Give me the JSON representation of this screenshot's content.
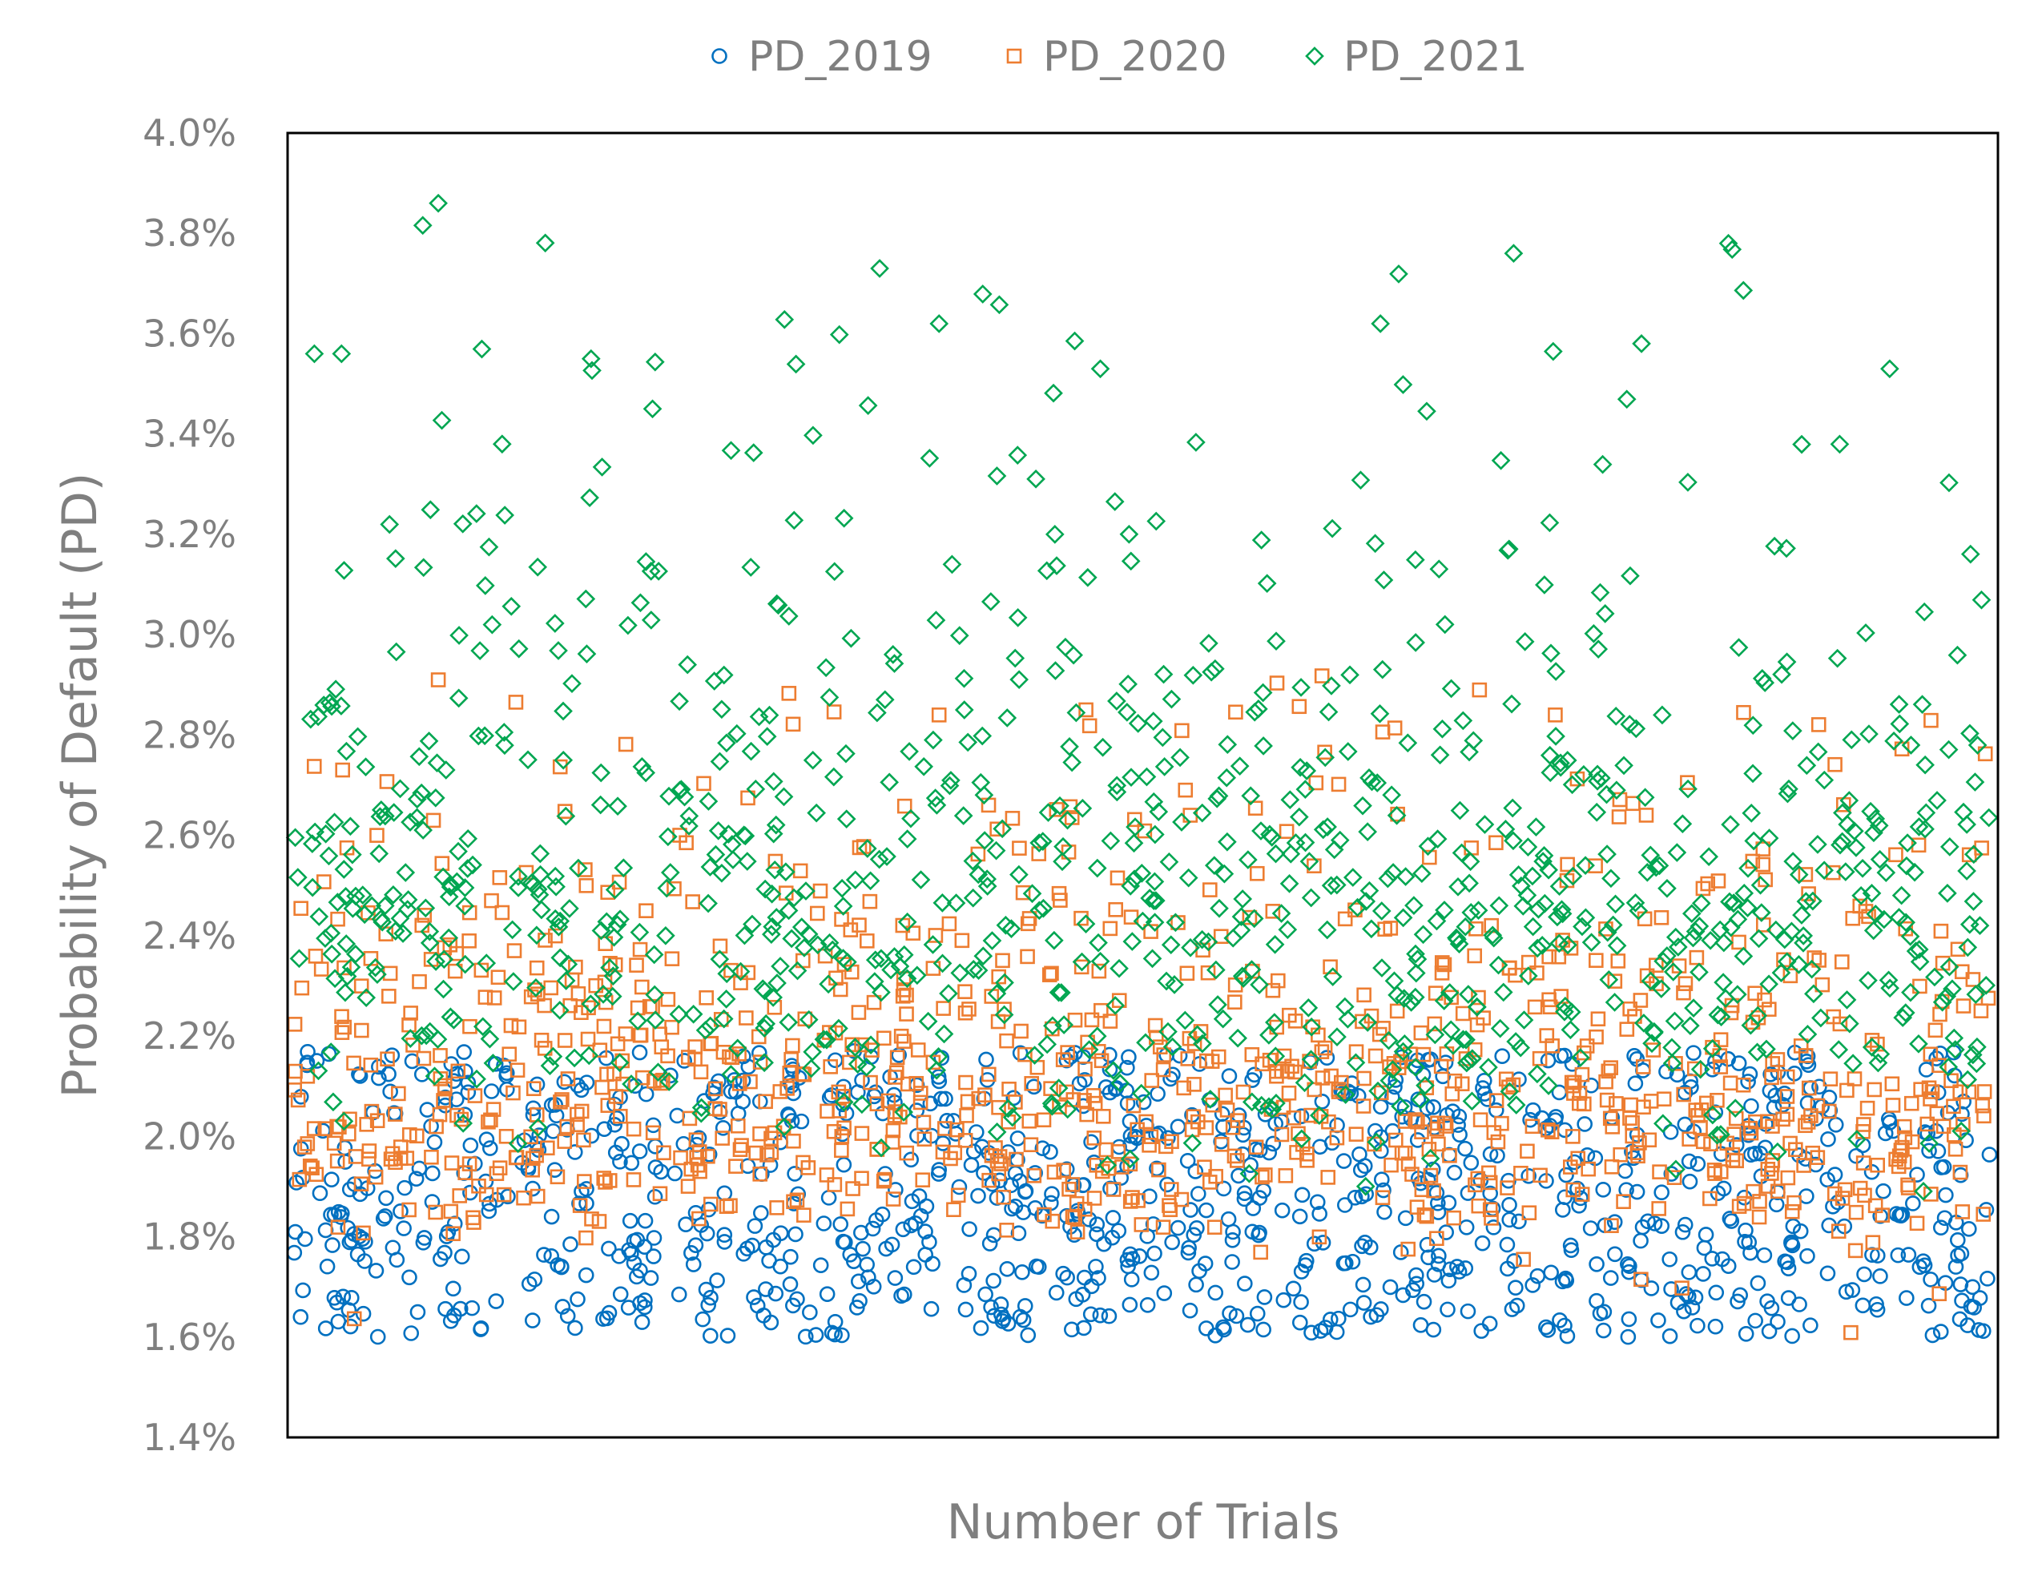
{
  "chart_data": {
    "type": "scatter",
    "title": "",
    "xlabel": "Number of Trials",
    "ylabel": "Probability of Default (PD)",
    "x_range": [
      0,
      1000
    ],
    "ylim": [
      0.014,
      0.04
    ],
    "yticks": [
      0.014,
      0.016,
      0.018,
      0.02,
      0.022,
      0.024,
      0.026,
      0.028,
      0.03,
      0.032,
      0.034,
      0.036,
      0.038,
      0.04
    ],
    "ytick_labels": [
      "1.4%",
      "1.6%",
      "1.8%",
      "2.0%",
      "2.2%",
      "2.4%",
      "2.6%",
      "2.8%",
      "3.0%",
      "3.2%",
      "3.4%",
      "3.6%",
      "3.8%",
      "4.0%"
    ],
    "grid": false,
    "legend_position": "top-center",
    "series": [
      {
        "name": "PD_2019",
        "marker": "circle",
        "color": "#0070c0",
        "count": 1000,
        "value_range": [
          0.016,
          0.0217
        ],
        "typical_range": [
          0.0165,
          0.021
        ]
      },
      {
        "name": "PD_2020",
        "marker": "square",
        "color": "#ed7d31",
        "count": 1000,
        "value_range": [
          0.016,
          0.0292
        ],
        "typical_range": [
          0.0175,
          0.026
        ]
      },
      {
        "name": "PD_2021",
        "marker": "diamond",
        "color": "#00a651",
        "count": 1000,
        "value_range": [
          0.0163,
          0.0386
        ],
        "typical_range": [
          0.019,
          0.032
        ]
      }
    ],
    "notable_points": [
      {
        "series": "PD_2021",
        "x": 85,
        "y": 0.0386
      },
      {
        "series": "PD_2021",
        "x": 845,
        "y": 0.0378
      },
      {
        "series": "PD_2021",
        "x": 345,
        "y": 0.0373
      },
      {
        "series": "PD_2021",
        "x": 640,
        "y": 0.0362
      },
      {
        "series": "PD_2021",
        "x": 380,
        "y": 0.0362
      },
      {
        "series": "PD_2021",
        "x": 12,
        "y": 0.0356
      },
      {
        "series": "PD_2021",
        "x": 28,
        "y": 0.0356
      },
      {
        "series": "PD_2021",
        "x": 175,
        "y": 0.0355
      },
      {
        "series": "PD_2021",
        "x": 940,
        "y": 0.0353
      },
      {
        "series": "PD_2021",
        "x": 475,
        "y": 0.0353
      },
      {
        "series": "PD_2020",
        "x": 85,
        "y": 0.0291
      },
      {
        "series": "PD_2020",
        "x": 743,
        "y": 0.0284
      },
      {
        "series": "PD_2020",
        "x": 380,
        "y": 0.0284
      },
      {
        "series": "PD_2019",
        "x": 330,
        "y": 0.0217
      }
    ]
  }
}
